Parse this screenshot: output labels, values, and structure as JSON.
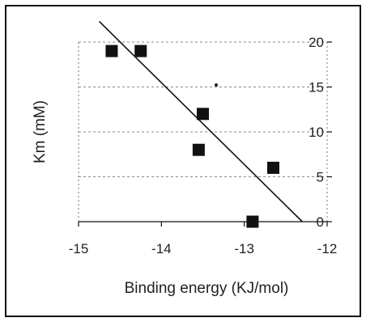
{
  "chart_data": {
    "type": "scatter",
    "title": "",
    "xlabel": "Binding energy (KJ/mol)",
    "ylabel": "Km (mM)",
    "xlim": [
      -15,
      -12
    ],
    "ylim": [
      0,
      20
    ],
    "x_ticks": [
      "-15",
      "-14",
      "-13",
      "-12"
    ],
    "y_ticks": [
      "0",
      "5",
      "10",
      "15",
      "20"
    ],
    "grid": "horizontal dashed",
    "series": [
      {
        "marker": "square",
        "points": [
          {
            "x": -14.6,
            "y": 19.0
          },
          {
            "x": -14.25,
            "y": 19.0
          },
          {
            "x": -13.5,
            "y": 12.0
          },
          {
            "x": -13.55,
            "y": 8.0
          },
          {
            "x": -12.65,
            "y": 6.0
          },
          {
            "x": -12.9,
            "y": 0.0
          }
        ]
      }
    ],
    "trendline": {
      "x": [
        -14.75,
        -12.3
      ],
      "y": [
        22.3,
        0.0
      ]
    },
    "colors": {
      "marker": "#111111",
      "line": "#111111",
      "grid": "#888888"
    }
  }
}
